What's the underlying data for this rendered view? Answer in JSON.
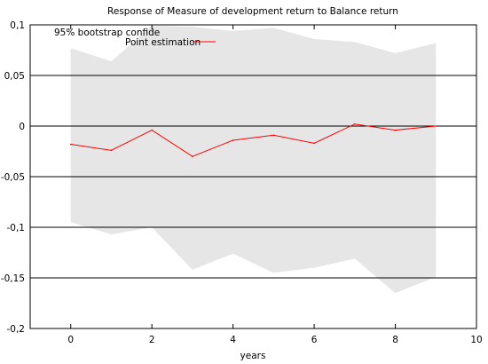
{
  "chart_data": {
    "type": "line",
    "title": "Response of Measure of development return to Balance return",
    "xlabel": "years",
    "ylabel": "",
    "xlim": [
      -1,
      10
    ],
    "ylim": [
      -0.2,
      0.1
    ],
    "x_ticks": [
      0,
      2,
      4,
      6,
      8,
      10
    ],
    "x_tick_labels": [
      "0",
      "2",
      "4",
      "6",
      "8",
      "10"
    ],
    "y_ticks": [
      0.1,
      0.05,
      0,
      -0.05,
      -0.1,
      -0.15,
      -0.2
    ],
    "y_tick_labels": [
      "0,1",
      "0,05",
      "0",
      "-0,05",
      "-0,1",
      "-0,15",
      "-0,2"
    ],
    "grid": "horizontal",
    "legend_position": "top-left",
    "x": [
      0,
      1,
      2,
      3,
      4,
      5,
      6,
      7,
      8,
      9
    ],
    "band": {
      "name": "95% bootstrap confide",
      "color": "#e6e6e6",
      "upper": [
        0.077,
        0.064,
        0.099,
        0.098,
        0.094,
        0.097,
        0.086,
        0.083,
        0.072,
        0.082
      ],
      "lower": [
        -0.095,
        -0.107,
        -0.1,
        -0.142,
        -0.126,
        -0.145,
        -0.14,
        -0.131,
        -0.165,
        -0.149
      ]
    },
    "series": [
      {
        "name": "Point estimation",
        "color": "#ff0000",
        "values": [
          -0.018,
          -0.024,
          -0.004,
          -0.03,
          -0.014,
          -0.009,
          -0.017,
          0.002,
          -0.004,
          0.0
        ]
      }
    ]
  }
}
